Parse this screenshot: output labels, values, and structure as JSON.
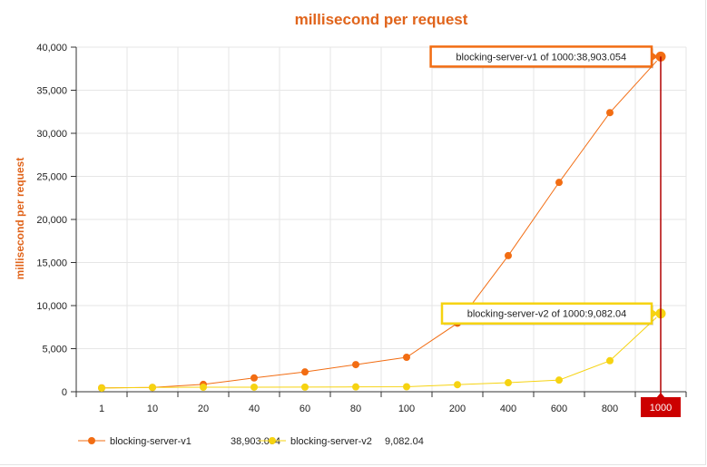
{
  "chart_data": {
    "type": "line",
    "title": "millisecond per request",
    "xlabel": "",
    "ylabel": "millisecond per request",
    "categories": [
      "1",
      "10",
      "20",
      "40",
      "60",
      "80",
      "100",
      "200",
      "400",
      "600",
      "800",
      "1000"
    ],
    "ylim": [
      0,
      40000
    ],
    "yticks": [
      0,
      5000,
      10000,
      15000,
      20000,
      25000,
      30000,
      35000,
      40000
    ],
    "ytick_labels": [
      "0",
      "5,000",
      "10,000",
      "15,000",
      "20,000",
      "25,000",
      "30,000",
      "35,000",
      "40,000"
    ],
    "grid": true,
    "legend_position": "bottom-left",
    "series": [
      {
        "name": "blocking-server-v1",
        "color": "#f26d13",
        "values": [
          450,
          500,
          850,
          1600,
          2300,
          3150,
          4000,
          7950,
          15800,
          24300,
          32400,
          38903.054
        ]
      },
      {
        "name": "blocking-server-v2",
        "color": "#f6d311",
        "values": [
          420,
          500,
          520,
          530,
          540,
          560,
          580,
          820,
          1050,
          1350,
          3600,
          9082.04
        ]
      }
    ],
    "highlight": {
      "category": "1000",
      "tooltips": [
        {
          "series": "blocking-server-v1",
          "text": "blocking-server-v1 of 1000:38,903.054"
        },
        {
          "series": "blocking-server-v2",
          "text": "blocking-server-v2 of 1000:9,082.04"
        }
      ],
      "legend_values": [
        "38,903.054",
        "9,082.04"
      ]
    }
  }
}
